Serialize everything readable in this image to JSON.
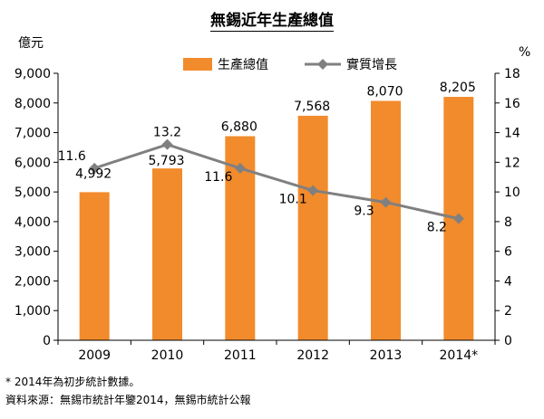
{
  "title": "無錫近年生產總值",
  "notes": [
    "* 2014年為初步統計數據。",
    "資料來源：無錫市統計年鑒2014，無錫市統計公報"
  ],
  "colors": {
    "bar": "#f28b2c",
    "line": "#808080",
    "axis": "#000000"
  },
  "chart_data": {
    "type": "bar+line",
    "title": "無錫近年生產總值",
    "categories": [
      "2009",
      "2010",
      "2011",
      "2012",
      "2013",
      "2014*"
    ],
    "left_axis": {
      "unit": "億元",
      "min": 0,
      "max": 9000,
      "step": 1000,
      "ticks": [
        "0",
        "1,000",
        "2,000",
        "3,000",
        "4,000",
        "5,000",
        "6,000",
        "7,000",
        "8,000",
        "9,000"
      ]
    },
    "right_axis": {
      "unit": "%",
      "min": 0,
      "max": 18,
      "step": 2,
      "ticks": [
        "0",
        "2",
        "4",
        "6",
        "8",
        "10",
        "12",
        "14",
        "16",
        "18"
      ]
    },
    "series": [
      {
        "name": "生產總值",
        "type": "bar",
        "axis": "left",
        "values": [
          4992,
          5793,
          6880,
          7568,
          8070,
          8205
        ],
        "labels": [
          "4,992",
          "5,793",
          "6,880",
          "7,568",
          "8,070",
          "8,205"
        ]
      },
      {
        "name": "實質增長",
        "type": "line",
        "axis": "right",
        "values": [
          11.6,
          13.2,
          11.6,
          10.1,
          9.3,
          8.2
        ],
        "labels": [
          "11.6",
          "13.2",
          "11.6",
          "10.1",
          "9.3",
          "8.2"
        ]
      }
    ],
    "legend": "top-center",
    "grid": false
  }
}
